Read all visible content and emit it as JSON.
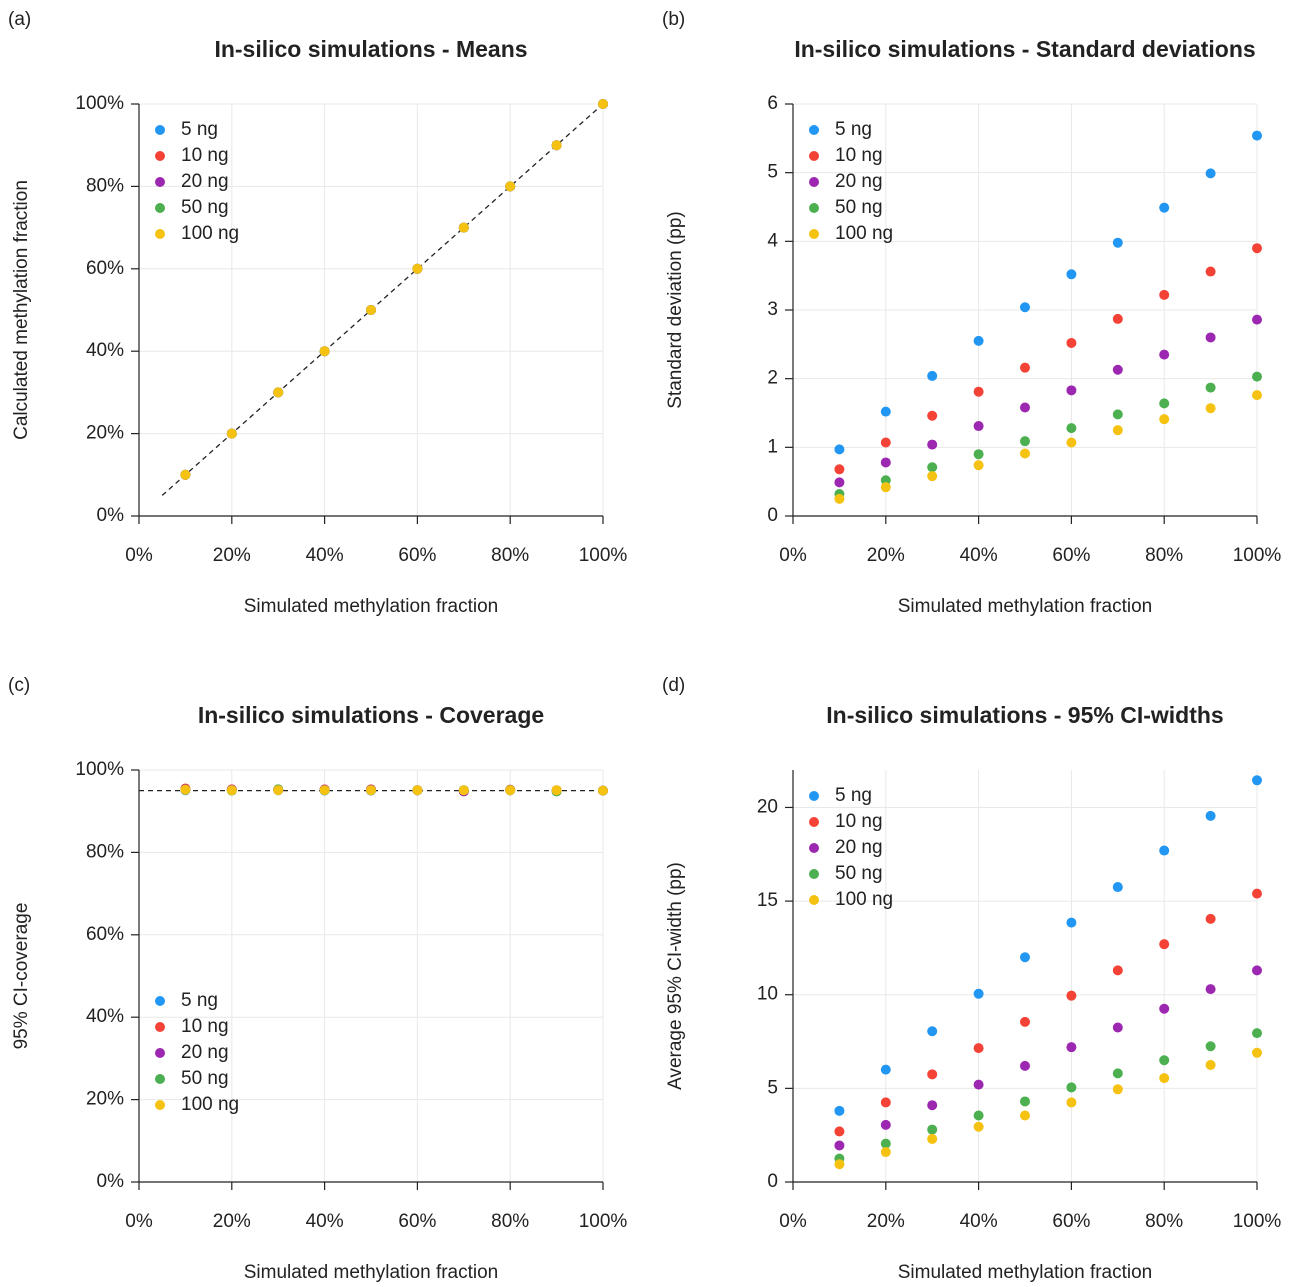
{
  "chart_data": [
    {
      "type": "scatter",
      "panel_label": "(a)",
      "title": "In-silico simulations - Means",
      "x_label": "Simulated methylation fraction",
      "y_label": "Calculated methylation fraction",
      "x": [
        10,
        20,
        30,
        40,
        50,
        60,
        70,
        80,
        90,
        100
      ],
      "series": [
        {
          "name": "5 ng",
          "color": "#2196f3",
          "values": [
            10,
            20,
            30,
            40,
            50,
            60,
            70,
            80,
            90,
            100
          ]
        },
        {
          "name": "10 ng",
          "color": "#f44336",
          "values": [
            10,
            20,
            30,
            40,
            50,
            60,
            70,
            80,
            90,
            100
          ]
        },
        {
          "name": "20 ng",
          "color": "#9c27b0",
          "values": [
            10,
            20,
            30,
            40,
            50,
            60,
            70,
            80,
            90,
            100
          ]
        },
        {
          "name": "50 ng",
          "color": "#4caf50",
          "values": [
            10,
            20,
            30,
            40,
            50,
            60,
            70,
            80,
            90,
            100
          ]
        },
        {
          "name": "100 ng",
          "color": "#f5c211",
          "values": [
            10,
            20,
            30,
            40,
            50,
            60,
            70,
            80,
            90,
            100
          ]
        }
      ],
      "reference_line": {
        "x": [
          5,
          100
        ],
        "y": [
          5,
          100
        ]
      },
      "xlim": [
        0,
        100
      ],
      "ylim": [
        0,
        100
      ],
      "xticks": [
        {
          "value": 0,
          "label": "0%"
        },
        {
          "value": 20,
          "label": "20%"
        },
        {
          "value": 40,
          "label": "40%"
        },
        {
          "value": 60,
          "label": "60%"
        },
        {
          "value": 80,
          "label": "80%"
        },
        {
          "value": 100,
          "label": "100%"
        }
      ],
      "yticks": [
        {
          "value": 0,
          "label": "0%"
        },
        {
          "value": 20,
          "label": "20%"
        },
        {
          "value": 40,
          "label": "40%"
        },
        {
          "value": 60,
          "label": "60%"
        },
        {
          "value": 80,
          "label": "80%"
        },
        {
          "value": 100,
          "label": "100%"
        }
      ],
      "grid": true,
      "legend": "top-left"
    },
    {
      "type": "scatter",
      "panel_label": "(b)",
      "title": "In-silico simulations - Standard deviations",
      "x_label": "Simulated methylation fraction",
      "y_label": "Standard deviation (pp)",
      "x": [
        10,
        20,
        30,
        40,
        50,
        60,
        70,
        80,
        90,
        100
      ],
      "series": [
        {
          "name": "5 ng",
          "color": "#2196f3",
          "values": [
            0.97,
            1.52,
            2.04,
            2.55,
            3.04,
            3.52,
            3.98,
            4.49,
            4.99,
            5.54
          ]
        },
        {
          "name": "10 ng",
          "color": "#f44336",
          "values": [
            0.68,
            1.07,
            1.46,
            1.81,
            2.16,
            2.52,
            2.87,
            3.22,
            3.56,
            3.9
          ]
        },
        {
          "name": "20 ng",
          "color": "#9c27b0",
          "values": [
            0.49,
            0.78,
            1.04,
            1.31,
            1.58,
            1.83,
            2.13,
            2.35,
            2.6,
            2.86
          ]
        },
        {
          "name": "50 ng",
          "color": "#4caf50",
          "values": [
            0.32,
            0.52,
            0.71,
            0.9,
            1.09,
            1.28,
            1.48,
            1.64,
            1.87,
            2.03
          ]
        },
        {
          "name": "100 ng",
          "color": "#f5c211",
          "values": [
            0.25,
            0.42,
            0.58,
            0.74,
            0.91,
            1.07,
            1.25,
            1.41,
            1.57,
            1.76
          ]
        }
      ],
      "xlim": [
        0,
        100
      ],
      "ylim": [
        0,
        6
      ],
      "xticks": [
        {
          "value": 0,
          "label": "0%"
        },
        {
          "value": 20,
          "label": "20%"
        },
        {
          "value": 40,
          "label": "40%"
        },
        {
          "value": 60,
          "label": "60%"
        },
        {
          "value": 80,
          "label": "80%"
        },
        {
          "value": 100,
          "label": "100%"
        }
      ],
      "yticks": [
        0,
        1,
        2,
        3,
        4,
        5,
        6
      ],
      "grid": true,
      "legend": "top-left"
    },
    {
      "type": "scatter",
      "panel_label": "(c)",
      "title": "In-silico simulations - Coverage",
      "x_label": "Simulated methylation fraction",
      "y_label": "95% CI-coverage",
      "x": [
        10,
        20,
        30,
        40,
        50,
        60,
        70,
        80,
        90,
        100
      ],
      "series": [
        {
          "name": "5 ng",
          "color": "#2196f3",
          "values": [
            95.1,
            95.2,
            95.1,
            95.0,
            95.0,
            95.1,
            95.1,
            95.2,
            95.0,
            95.0
          ]
        },
        {
          "name": "10 ng",
          "color": "#f44336",
          "values": [
            95.5,
            95.3,
            95.3,
            95.3,
            95.3,
            95.1,
            95.0,
            95.2,
            95.1,
            95.0
          ]
        },
        {
          "name": "20 ng",
          "color": "#9c27b0",
          "values": [
            95.3,
            95.2,
            95.2,
            95.2,
            95.2,
            95.1,
            94.8,
            95.1,
            95.0,
            95.0
          ]
        },
        {
          "name": "50 ng",
          "color": "#4caf50",
          "values": [
            95.2,
            95.0,
            95.3,
            95.1,
            95.1,
            95.1,
            95.1,
            95.1,
            94.8,
            95.0
          ]
        },
        {
          "name": "100 ng",
          "color": "#f5c211",
          "values": [
            95.2,
            95.1,
            95.1,
            95.1,
            95.1,
            95.1,
            95.1,
            95.1,
            95.1,
            95.0
          ]
        }
      ],
      "reference_line": {
        "x": [
          0,
          100
        ],
        "y": [
          95,
          95
        ]
      },
      "xlim": [
        0,
        100
      ],
      "ylim": [
        0,
        100
      ],
      "xticks": [
        {
          "value": 0,
          "label": "0%"
        },
        {
          "value": 20,
          "label": "20%"
        },
        {
          "value": 40,
          "label": "40%"
        },
        {
          "value": 60,
          "label": "60%"
        },
        {
          "value": 80,
          "label": "80%"
        },
        {
          "value": 100,
          "label": "100%"
        }
      ],
      "yticks": [
        {
          "value": 0,
          "label": "0%"
        },
        {
          "value": 20,
          "label": "20%"
        },
        {
          "value": 40,
          "label": "40%"
        },
        {
          "value": 60,
          "label": "60%"
        },
        {
          "value": 80,
          "label": "80%"
        },
        {
          "value": 100,
          "label": "100%"
        }
      ],
      "grid": true,
      "legend": "bottom-left"
    },
    {
      "type": "scatter",
      "panel_label": "(d)",
      "title": "In-silico simulations - 95% CI-widths",
      "x_label": "Simulated methylation fraction",
      "y_label": "Average 95% CI-width (pp)",
      "x": [
        10,
        20,
        30,
        40,
        50,
        60,
        70,
        80,
        90,
        100
      ],
      "series": [
        {
          "name": "5 ng",
          "color": "#2196f3",
          "values": [
            3.8,
            6.0,
            8.05,
            10.05,
            12.0,
            13.85,
            15.75,
            17.7,
            19.55,
            21.45
          ]
        },
        {
          "name": "10 ng",
          "color": "#f44336",
          "values": [
            2.7,
            4.25,
            5.75,
            7.15,
            8.55,
            9.95,
            11.3,
            12.7,
            14.05,
            15.4
          ]
        },
        {
          "name": "20 ng",
          "color": "#9c27b0",
          "values": [
            1.95,
            3.05,
            4.1,
            5.2,
            6.2,
            7.2,
            8.25,
            9.25,
            10.3,
            11.3
          ]
        },
        {
          "name": "50 ng",
          "color": "#4caf50",
          "values": [
            1.25,
            2.05,
            2.8,
            3.55,
            4.3,
            5.05,
            5.8,
            6.5,
            7.25,
            7.95
          ]
        },
        {
          "name": "100 ng",
          "color": "#f5c211",
          "values": [
            0.95,
            1.6,
            2.3,
            2.95,
            3.55,
            4.25,
            4.95,
            5.55,
            6.25,
            6.9
          ]
        }
      ],
      "xlim": [
        0,
        100
      ],
      "ylim": [
        0,
        22
      ],
      "xticks": [
        {
          "value": 0,
          "label": "0%"
        },
        {
          "value": 20,
          "label": "20%"
        },
        {
          "value": 40,
          "label": "40%"
        },
        {
          "value": 60,
          "label": "60%"
        },
        {
          "value": 80,
          "label": "80%"
        },
        {
          "value": 100,
          "label": "100%"
        }
      ],
      "yticks": [
        0,
        5,
        10,
        15,
        20
      ],
      "grid": true,
      "legend": "top-left"
    }
  ]
}
